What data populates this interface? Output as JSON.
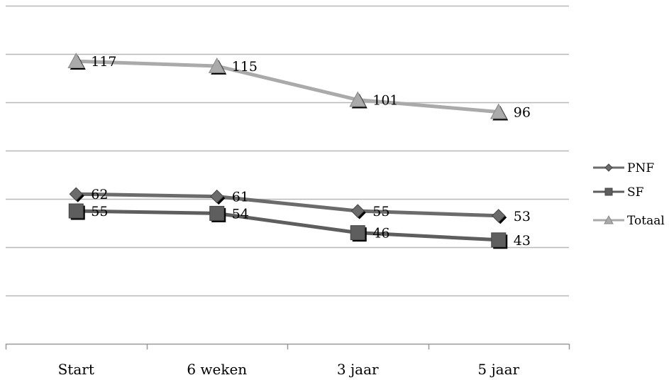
{
  "chart_data": {
    "type": "line",
    "title": "",
    "xlabel": "",
    "ylabel": "",
    "categories": [
      "Start",
      "6 weken",
      "3 jaar",
      "5 jaar"
    ],
    "ylim": [
      0,
      140
    ],
    "y_gridline_step": 20,
    "y_tick_labels_shown": false,
    "grid": true,
    "legend_position": "right",
    "series": [
      {
        "name": "PNF",
        "values": [
          62,
          61,
          55,
          53
        ],
        "color": "#6b6b6b",
        "marker": "diamond"
      },
      {
        "name": "SF",
        "values": [
          55,
          54,
          46,
          43
        ],
        "color": "#5e5e5e",
        "marker": "square"
      },
      {
        "name": "Totaal",
        "values": [
          117,
          115,
          101,
          96
        ],
        "color": "#aaaaaa",
        "marker": "triangle"
      }
    ],
    "data_labels": true
  }
}
